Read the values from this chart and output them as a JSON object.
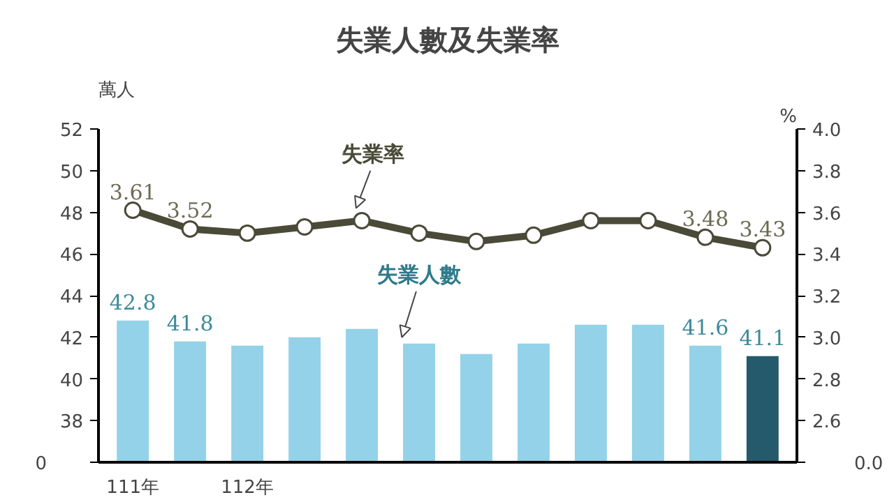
{
  "chart_data": {
    "type": "bar",
    "title": "失業人數及失業率",
    "ylabel": "萬人",
    "y2label": "%",
    "categories": [
      "111年",
      null,
      "112年",
      null,
      null,
      null,
      null,
      null,
      null,
      null,
      null,
      null
    ],
    "ylim": [
      36,
      52
    ],
    "yticks": [
      {
        "value": 36,
        "label": null
      },
      38,
      40,
      42,
      44,
      46,
      48,
      50,
      52
    ],
    "y2lim": [
      2.4,
      4.0
    ],
    "y2ticks": [
      {
        "value": 2.4,
        "label": null
      },
      {
        "value": 2.6,
        "label": "2.6"
      },
      {
        "value": 2.8,
        "label": "2.8"
      },
      {
        "value": 3.0,
        "label": "3.0"
      },
      {
        "value": 3.2,
        "label": "3.2"
      },
      {
        "value": 3.4,
        "label": "3.4"
      },
      {
        "value": 3.6,
        "label": "3.6"
      },
      {
        "value": 3.8,
        "label": "3.8"
      },
      {
        "value": 4.0,
        "label": "4.0"
      }
    ],
    "annotations": [
      "0",
      "0.0"
    ],
    "series": [
      {
        "name": "失業人數",
        "color": "#93d2e8",
        "colors": [
          "#93d2e8",
          "#93d2e8",
          "#93d2e8",
          "#93d2e8",
          "#93d2e8",
          "#93d2e8",
          "#93d2e8",
          "#93d2e8",
          "#93d2e8",
          "#93d2e8",
          "#93d2e8",
          "#245a6b"
        ],
        "values": [
          42.8,
          41.8,
          41.6,
          42.0,
          42.4,
          41.7,
          41.2,
          41.7,
          42.6,
          42.6,
          41.6,
          41.1
        ],
        "value_labels": [
          "42.8",
          "41.8",
          null,
          null,
          null,
          null,
          null,
          null,
          null,
          null,
          "41.6",
          "41.1"
        ]
      },
      {
        "name": "失業率",
        "type": "line",
        "axis": "y2",
        "color": "#4a4a38",
        "values": [
          3.61,
          3.52,
          3.5,
          3.53,
          3.56,
          3.5,
          3.46,
          3.49,
          3.56,
          3.56,
          3.48,
          3.43
        ],
        "value_labels": [
          "3.61",
          "3.52",
          null,
          null,
          null,
          null,
          null,
          null,
          null,
          null,
          "3.48",
          "3.43"
        ]
      }
    ],
    "marker": "circle",
    "grid": false
  }
}
